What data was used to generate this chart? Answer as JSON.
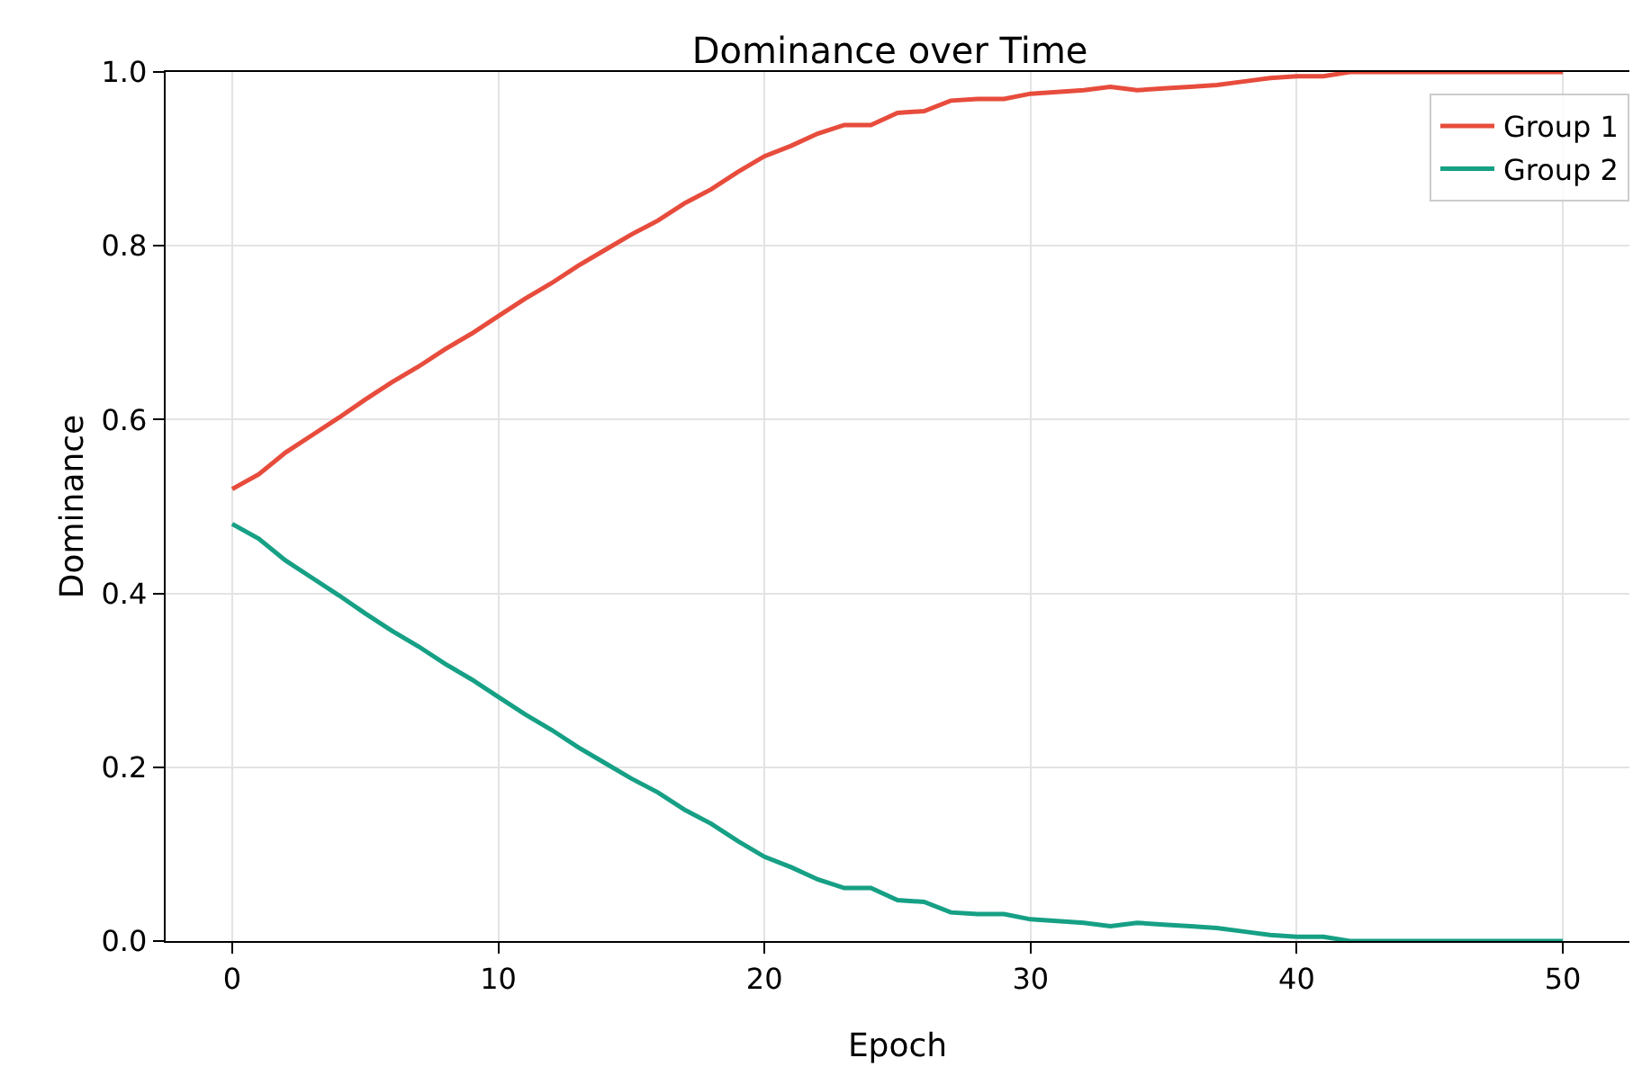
{
  "chart_data": {
    "type": "line",
    "title": "Dominance over Time",
    "xlabel": "Epoch",
    "ylabel": "Dominance",
    "x": [
      0,
      1,
      2,
      3,
      4,
      5,
      6,
      7,
      8,
      9,
      10,
      11,
      12,
      13,
      14,
      15,
      16,
      17,
      18,
      19,
      20,
      21,
      22,
      23,
      24,
      25,
      26,
      27,
      28,
      29,
      30,
      31,
      32,
      33,
      34,
      35,
      36,
      37,
      38,
      39,
      40,
      41,
      42,
      43,
      44,
      45,
      46,
      47,
      48,
      49,
      50
    ],
    "series": [
      {
        "name": "Group 1",
        "color": "#e74c3c",
        "values": [
          0.52,
          0.537,
          0.562,
          0.582,
          0.602,
          0.623,
          0.643,
          0.661,
          0.681,
          0.699,
          0.719,
          0.739,
          0.757,
          0.777,
          0.795,
          0.813,
          0.829,
          0.849,
          0.865,
          0.885,
          0.903,
          0.915,
          0.929,
          0.939,
          0.939,
          0.953,
          0.955,
          0.967,
          0.969,
          0.969,
          0.975,
          0.977,
          0.979,
          0.983,
          0.979,
          0.981,
          0.983,
          0.985,
          0.989,
          0.993,
          0.995,
          0.995,
          1.0,
          1.0,
          1.0,
          1.0,
          1.0,
          1.0,
          1.0,
          1.0,
          1.0
        ]
      },
      {
        "name": "Group 2",
        "color": "#16a085",
        "values": [
          0.48,
          0.463,
          0.438,
          0.418,
          0.398,
          0.377,
          0.357,
          0.339,
          0.319,
          0.301,
          0.281,
          0.261,
          0.243,
          0.223,
          0.205,
          0.187,
          0.171,
          0.151,
          0.135,
          0.115,
          0.097,
          0.085,
          0.071,
          0.061,
          0.061,
          0.047,
          0.045,
          0.033,
          0.031,
          0.031,
          0.025,
          0.023,
          0.021,
          0.017,
          0.021,
          0.019,
          0.017,
          0.015,
          0.011,
          0.007,
          0.005,
          0.005,
          0.0,
          0.0,
          0.0,
          0.0,
          0.0,
          0.0,
          0.0,
          0.0,
          0.0
        ]
      }
    ],
    "xlim": [
      -2.5,
      52.5
    ],
    "xticks": [
      0,
      10,
      20,
      30,
      40,
      50
    ],
    "ylim": [
      0,
      1
    ],
    "yticks": [
      {
        "value": 0,
        "label": "0.0"
      },
      {
        "value": 0.2,
        "label": "0.2"
      },
      {
        "value": 0.4,
        "label": "0.4"
      },
      {
        "value": 0.6,
        "label": "0.6"
      },
      {
        "value": 0.8,
        "label": "0.8"
      },
      {
        "value": 1,
        "label": "1.0"
      }
    ],
    "grid": true,
    "legend": "top right"
  }
}
